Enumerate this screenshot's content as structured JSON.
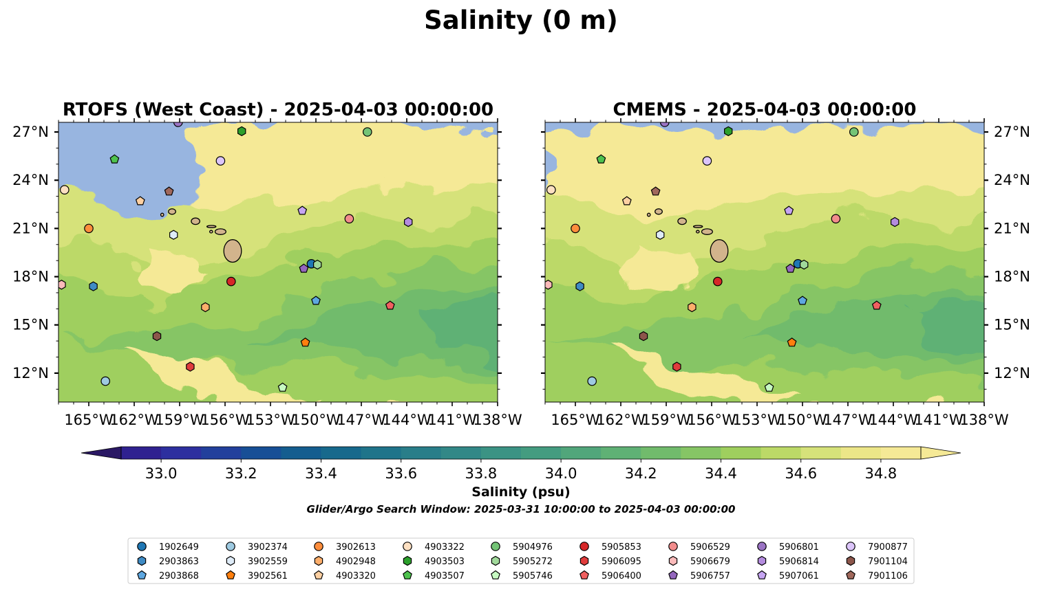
{
  "figure": {
    "title": "Salinity (0 m)",
    "colorbar_label": "Salinity (psu)",
    "search_window_note": "Glider/Argo Search Window: 2025-03-31 10:00:00 to 2025-04-03 00:00:00"
  },
  "colors": {
    "land": "#d2b48c",
    "nodata": "#98b5e0",
    "colormap": [
      "#2a1864",
      "#2f2190",
      "#2d2f9f",
      "#22409c",
      "#174f96",
      "#145d8f",
      "#17698c",
      "#1f748a",
      "#297e89",
      "#328887",
      "#3b9384",
      "#449c80",
      "#51a67b",
      "#5fb175",
      "#71bb6c",
      "#86c565",
      "#9fcf5e",
      "#bcd967",
      "#d6e27a",
      "#ece688",
      "#f5e996"
    ]
  },
  "chart_data": [
    {
      "type": "map-contourf",
      "title": "RTOFS (West Coast) - 2025-04-03 00:00:00",
      "xlim": [
        -167,
        -138
      ],
      "ylim": [
        10.2,
        27.6
      ],
      "x_ticks": [
        "165°W",
        "162°W",
        "159°W",
        "156°W",
        "153°W",
        "150°W",
        "147°W",
        "144°W",
        "141°W",
        "138°W"
      ],
      "x_tick_values": [
        -165,
        -162,
        -159,
        -156,
        -153,
        -150,
        -147,
        -144,
        -141,
        -138
      ],
      "y_ticks": [
        "12°N",
        "15°N",
        "18°N",
        "21°N",
        "24°N",
        "27°N"
      ],
      "y_tick_values": [
        12,
        15,
        18,
        21,
        24,
        27
      ],
      "ytick_side": "left",
      "model_west_edge_lon": -157.9,
      "model_north_edge_lat": 27.6
    },
    {
      "type": "map-contourf",
      "title": "CMEMS - 2025-04-03 00:00:00",
      "xlim": [
        -167,
        -138
      ],
      "ylim": [
        10.2,
        27.6
      ],
      "x_ticks": [
        "165°W",
        "162°W",
        "159°W",
        "156°W",
        "153°W",
        "150°W",
        "147°W",
        "144°W",
        "141°W",
        "138°W"
      ],
      "x_tick_values": [
        -165,
        -162,
        -159,
        -156,
        -153,
        -150,
        -147,
        -144,
        -141,
        -138
      ],
      "y_ticks": [
        "12°N",
        "15°N",
        "18°N",
        "21°N",
        "24°N",
        "27°N"
      ],
      "y_tick_values": [
        12,
        15,
        18,
        21,
        24,
        27
      ],
      "ytick_side": "right",
      "model_west_edge_lon": -167,
      "model_north_edge_lat": 27.05
    }
  ],
  "colorbar": {
    "vmin": 32.9,
    "vmax": 34.9,
    "step": 0.1,
    "extend": "both",
    "ticks": [
      "33.0",
      "33.2",
      "33.4",
      "33.6",
      "33.8",
      "34.0",
      "34.2",
      "34.4",
      "34.6",
      "34.8"
    ],
    "tick_values": [
      33.0,
      33.2,
      33.4,
      33.6,
      33.8,
      34.0,
      34.2,
      34.4,
      34.6,
      34.8
    ]
  },
  "platforms": [
    {
      "id": "1902649",
      "marker": "circle",
      "color": "#1f77b4",
      "lon": -150.3,
      "lat": 18.8
    },
    {
      "id": "2903863",
      "marker": "hexagon",
      "color": "#3f8bc4",
      "lon": -164.7,
      "lat": 17.4
    },
    {
      "id": "2903868",
      "marker": "pentagon",
      "color": "#5ea7e0",
      "lon": -150.0,
      "lat": 16.5
    },
    {
      "id": "3902374",
      "marker": "circle",
      "color": "#9ecae1",
      "lon": -163.9,
      "lat": 11.5
    },
    {
      "id": "3902559",
      "marker": "hexagon",
      "color": "#deebf7",
      "lon": -159.4,
      "lat": 20.6
    },
    {
      "id": "3902561",
      "marker": "pentagon",
      "color": "#ff7f0e",
      "lon": -150.7,
      "lat": 13.9
    },
    {
      "id": "3902613",
      "marker": "circle",
      "color": "#fd8d3c",
      "lon": -165.0,
      "lat": 21.0
    },
    {
      "id": "4902948",
      "marker": "hexagon",
      "color": "#fdae6b",
      "lon": -157.3,
      "lat": 16.1
    },
    {
      "id": "4903320",
      "marker": "pentagon",
      "color": "#fdd0a2",
      "lon": -161.6,
      "lat": 22.7
    },
    {
      "id": "4903322",
      "marker": "circle",
      "color": "#fde0c2",
      "lon": -166.6,
      "lat": 23.4
    },
    {
      "id": "4903503",
      "marker": "hexagon",
      "color": "#2ca02c",
      "lon": -154.9,
      "lat": 27.05
    },
    {
      "id": "4903507",
      "marker": "pentagon",
      "color": "#4ec24e",
      "lon": -163.3,
      "lat": 25.3
    },
    {
      "id": "5904976",
      "marker": "circle",
      "color": "#74c476",
      "lon": -146.6,
      "lat": 27.0
    },
    {
      "id": "5905272",
      "marker": "hexagon",
      "color": "#a1d99b",
      "lon": -149.9,
      "lat": 18.75
    },
    {
      "id": "5905746",
      "marker": "pentagon",
      "color": "#c7f9c2",
      "lon": -152.2,
      "lat": 11.1
    },
    {
      "id": "5905853",
      "marker": "circle",
      "color": "#d62728",
      "lon": -155.6,
      "lat": 17.7
    },
    {
      "id": "5906095",
      "marker": "hexagon",
      "color": "#e03c3c",
      "lon": -158.3,
      "lat": 12.4
    },
    {
      "id": "5906400",
      "marker": "pentagon",
      "color": "#f06060",
      "lon": -145.1,
      "lat": 16.2
    },
    {
      "id": "5906529",
      "marker": "circle",
      "color": "#f28c8c",
      "lon": -147.8,
      "lat": 21.6
    },
    {
      "id": "5906679",
      "marker": "hexagon",
      "color": "#fbbaba",
      "lon": -166.8,
      "lat": 17.5
    },
    {
      "id": "5906757",
      "marker": "pentagon",
      "color": "#9467bd",
      "lon": -150.8,
      "lat": 18.5
    },
    {
      "id": "5906801",
      "marker": "circle",
      "color": "#9b74c4",
      "lon": -159.1,
      "lat": 27.6
    },
    {
      "id": "5906814",
      "marker": "hexagon",
      "color": "#b48cde",
      "lon": -143.9,
      "lat": 21.4
    },
    {
      "id": "5907061",
      "marker": "pentagon",
      "color": "#c6a5f2",
      "lon": -150.9,
      "lat": 22.1
    },
    {
      "id": "7900877",
      "marker": "circle",
      "color": "#dcc5fa",
      "lon": -156.3,
      "lat": 25.2
    },
    {
      "id": "7901104",
      "marker": "hexagon",
      "color": "#8c564b",
      "lon": -160.5,
      "lat": 14.3
    },
    {
      "id": "7901106",
      "marker": "pentagon",
      "color": "#a0685c",
      "lon": -159.7,
      "lat": 23.3
    }
  ],
  "islands": [
    {
      "name": "Hawaii",
      "lon": -155.5,
      "lat": 19.6,
      "rx": 0.58,
      "ry": 0.7
    },
    {
      "name": "Maui",
      "lon": -156.3,
      "lat": 20.8,
      "rx": 0.36,
      "ry": 0.18
    },
    {
      "name": "Molokai",
      "lon": -156.9,
      "lat": 21.12,
      "rx": 0.3,
      "ry": 0.07
    },
    {
      "name": "Lanai",
      "lon": -156.92,
      "lat": 20.8,
      "rx": 0.1,
      "ry": 0.08
    },
    {
      "name": "Oahu",
      "lon": -157.95,
      "lat": 21.45,
      "rx": 0.28,
      "ry": 0.2
    },
    {
      "name": "Kauai",
      "lon": -159.5,
      "lat": 22.05,
      "rx": 0.24,
      "ry": 0.17
    },
    {
      "name": "Niihau",
      "lon": -160.15,
      "lat": 21.85,
      "rx": 0.1,
      "ry": 0.1
    }
  ]
}
